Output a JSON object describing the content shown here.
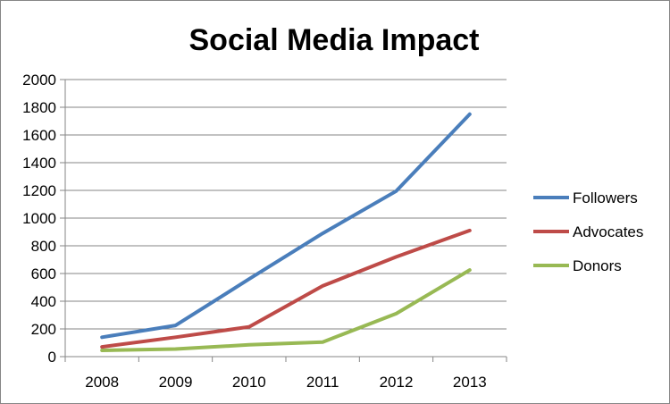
{
  "chart_data": {
    "type": "line",
    "title": "Social Media Impact",
    "xlabel": "",
    "ylabel": "",
    "categories": [
      "2008",
      "2009",
      "2010",
      "2011",
      "2012",
      "2013"
    ],
    "ylim": [
      0,
      2000
    ],
    "yticks": [
      0,
      200,
      400,
      600,
      800,
      1000,
      1200,
      1400,
      1600,
      1800,
      2000
    ],
    "grid": true,
    "legend_position": "right",
    "series": [
      {
        "name": "Followers",
        "color": "#4A7EBB",
        "values": [
          140,
          225,
          560,
          890,
          1195,
          1750
        ]
      },
      {
        "name": "Advocates",
        "color": "#BE4B48",
        "values": [
          70,
          140,
          215,
          510,
          720,
          910
        ]
      },
      {
        "name": "Donors",
        "color": "#98B954",
        "values": [
          45,
          55,
          85,
          105,
          310,
          625
        ]
      }
    ]
  }
}
